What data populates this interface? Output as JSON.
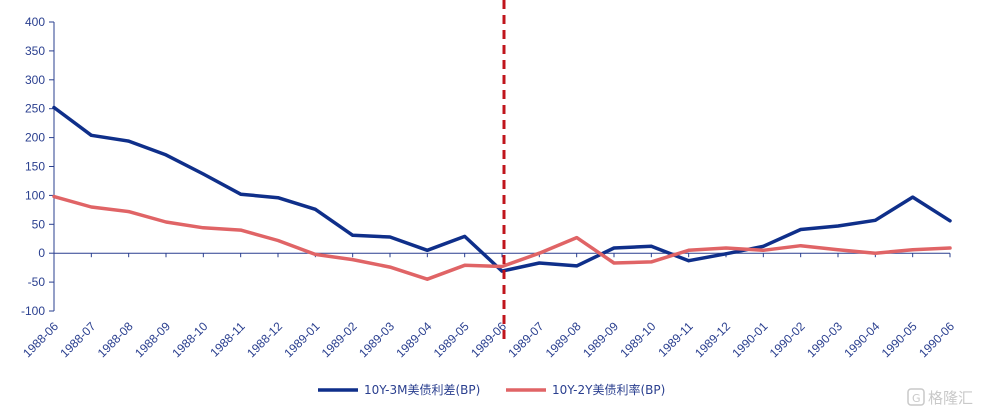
{
  "chart_data": {
    "type": "line",
    "categories": [
      "1988-06",
      "1988-07",
      "1988-08",
      "1988-09",
      "1988-10",
      "1988-11",
      "1988-12",
      "1989-01",
      "1989-02",
      "1989-03",
      "1989-04",
      "1989-05",
      "1989-06",
      "1989-07",
      "1989-08",
      "1989-09",
      "1989-10",
      "1989-11",
      "1989-12",
      "1990-01",
      "1990-02",
      "1990-03",
      "1990-04",
      "1990-05",
      "1990-06"
    ],
    "series": [
      {
        "name": "10Y-3M美债利差(BP)",
        "color": "#0f2f8a",
        "values": [
          252,
          204,
          194,
          170,
          137,
          102,
          96,
          76,
          31,
          28,
          5,
          29,
          -31,
          -17,
          -22,
          9,
          12,
          -13,
          -1,
          12,
          41,
          47,
          57,
          97,
          56
        ]
      },
      {
        "name": "10Y-2Y美债利率(BP)",
        "color": "#e06466",
        "values": [
          98,
          80,
          72,
          54,
          44,
          40,
          22,
          -2,
          -11,
          -24,
          -45,
          -21,
          -23,
          0,
          27,
          -17,
          -15,
          5,
          9,
          5,
          13,
          6,
          0,
          6,
          9
        ]
      }
    ],
    "xlabel": "",
    "ylabel": "",
    "ylim": [
      -100,
      400
    ],
    "yticks": [
      -100,
      -50,
      0,
      50,
      100,
      150,
      200,
      250,
      300,
      350,
      400
    ],
    "grid": false,
    "legend_position": "bottom-center",
    "reference_line": {
      "category": "1989-06",
      "style": "dashed",
      "color": "#c0151c"
    }
  },
  "watermark": {
    "text": "格隆汇"
  }
}
